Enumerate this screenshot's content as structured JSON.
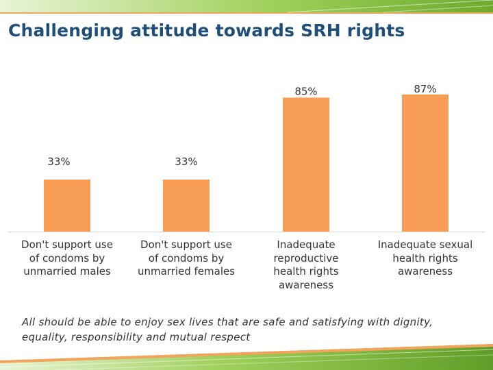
{
  "title": "Challenging attitude towards SRH rights",
  "chart_data": {
    "type": "bar",
    "title": "Challenging attitude towards SRH rights",
    "categories": [
      "Don't support use of condoms by unmarried males",
      "Don't support use of condoms by unmarried females",
      "Inadequate reproductive health rights awareness",
      "Inadequate sexual health rights awareness"
    ],
    "category_lines": [
      [
        "Don't support use",
        "of condoms by",
        "unmarried males"
      ],
      [
        "Don't support use",
        "of condoms by",
        "unmarried females"
      ],
      [
        "Inadequate",
        "reproductive",
        "health rights",
        "awareness"
      ],
      [
        "Inadequate sexual",
        "health rights",
        "awareness"
      ]
    ],
    "values": [
      33,
      33,
      85,
      87
    ],
    "data_labels": [
      "33%",
      "33%",
      "85%",
      "87%"
    ],
    "xlabel": "",
    "ylabel": "",
    "ylim": [
      0,
      100
    ],
    "grid": false,
    "legend": "none",
    "bar_color": "#f79d56"
  },
  "caption": "All should be able to enjoy sex lives that are safe and satisfying with dignity, equality, responsibility and mutual respect",
  "colors": {
    "title": "#1f4e79",
    "accent_green": "#8cc63f",
    "accent_orange": "#f79d56"
  }
}
